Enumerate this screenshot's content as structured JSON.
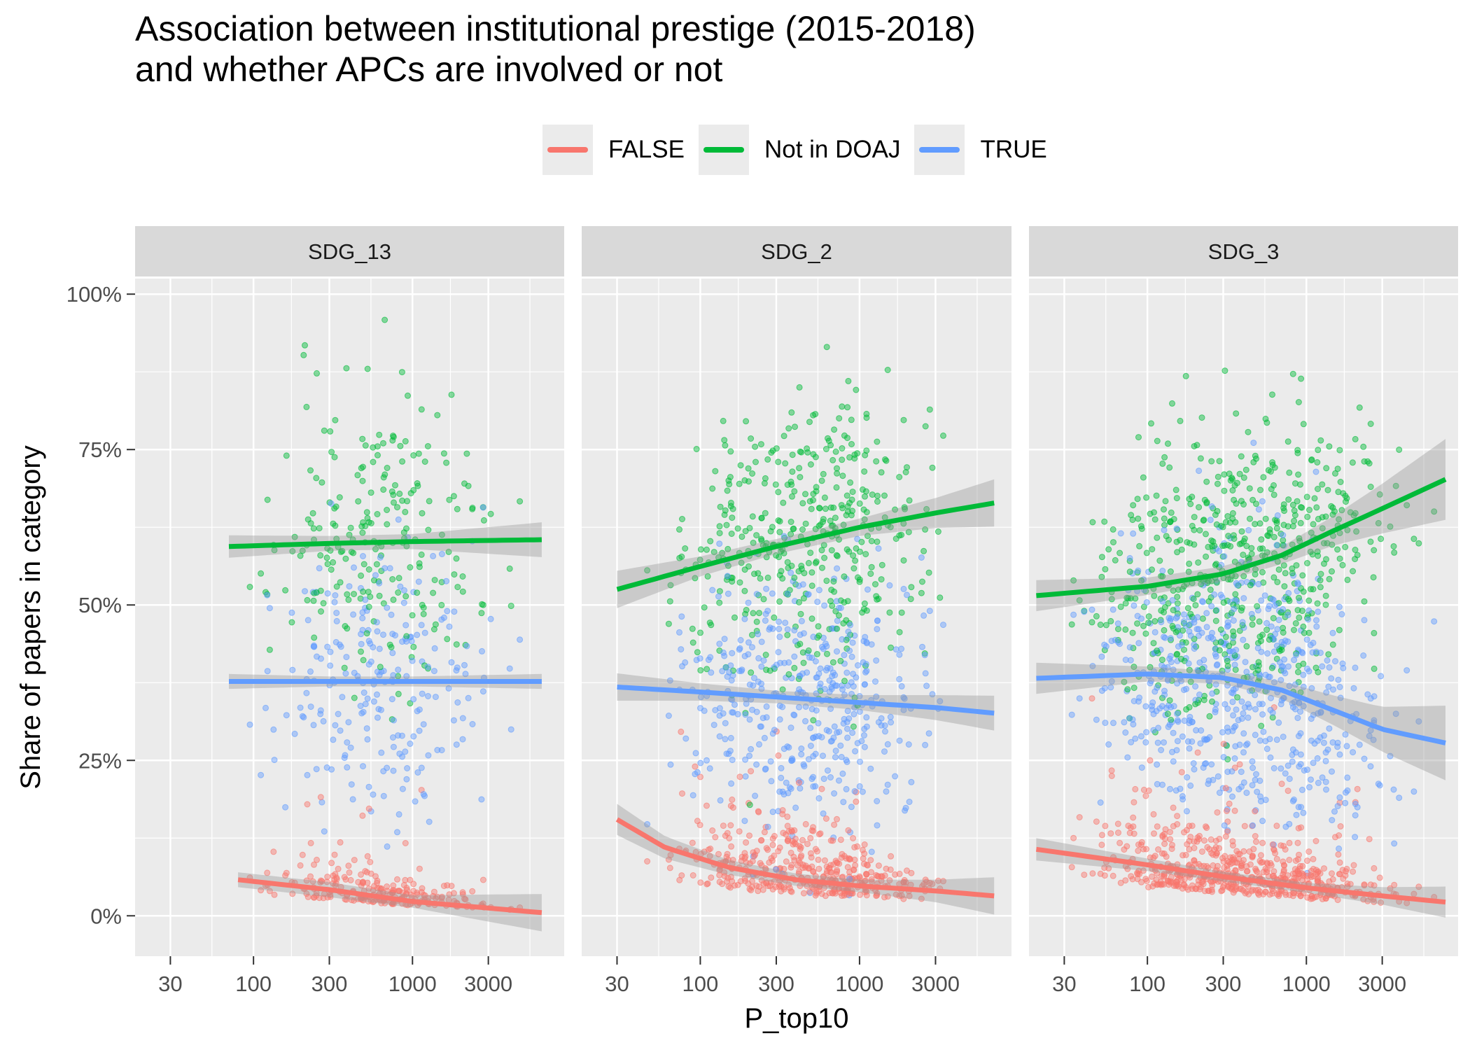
{
  "title": {
    "line1": "Association between institutional prestige (2015-2018)",
    "line2": "and whether APCs are involved or not"
  },
  "legend": [
    {
      "label": "FALSE",
      "color": "#F8766D"
    },
    {
      "label": "Not in DOAJ",
      "color": "#00BA38"
    },
    {
      "label": "TRUE",
      "color": "#619CFF"
    }
  ],
  "chart_data": {
    "type": "scatter",
    "subtype": "faceted scatter with smoothed trend lines and confidence bands",
    "x_scale": "log10",
    "xlabel": "P_top10",
    "ylabel": "Share of papers in category",
    "x_ticks": [
      30,
      100,
      300,
      1000,
      3000
    ],
    "x_tick_labels": [
      "30",
      "100",
      "300",
      "1000",
      "3000"
    ],
    "y_ticks": [
      0,
      0.25,
      0.5,
      0.75,
      1.0
    ],
    "y_tick_labels": [
      "0%",
      "25%",
      "50%",
      "75%",
      "100%"
    ],
    "xlim": [
      18,
      9000
    ],
    "ylim": [
      -0.065,
      1.025
    ],
    "grid": true,
    "legend_position": "top",
    "facets": [
      {
        "name": "SDG_13",
        "x_range": [
          65,
          6500
        ],
        "n_points": 230,
        "series": [
          {
            "name": "FALSE",
            "color": "#F8766D",
            "trend": [
              [
                80,
                0.058
              ],
              [
                300,
                0.042
              ],
              [
                1000,
                0.023
              ],
              [
                6500,
                0.005
              ]
            ],
            "band": [
              0.012,
              0.012,
              0.01,
              0.03
            ]
          },
          {
            "name": "Not in DOAJ",
            "color": "#00BA38",
            "trend": [
              [
                70,
                0.594
              ],
              [
                300,
                0.599
              ],
              [
                1000,
                0.602
              ],
              [
                6500,
                0.605
              ]
            ],
            "band": [
              0.018,
              0.012,
              0.012,
              0.028
            ]
          },
          {
            "name": "TRUE",
            "color": "#619CFF",
            "trend": [
              [
                70,
                0.377
              ],
              [
                300,
                0.377
              ],
              [
                1000,
                0.377
              ],
              [
                6500,
                0.377
              ]
            ],
            "band": [
              0.012,
              0.008,
              0.008,
              0.012
            ]
          }
        ]
      },
      {
        "name": "SDG_2",
        "x_range": [
          30,
          7000
        ],
        "n_points": 430,
        "series": [
          {
            "name": "FALSE",
            "color": "#F8766D",
            "trend": [
              [
                30,
                0.155
              ],
              [
                60,
                0.11
              ],
              [
                150,
                0.078
              ],
              [
                400,
                0.058
              ],
              [
                1000,
                0.048
              ],
              [
                3000,
                0.04
              ],
              [
                7000,
                0.032
              ]
            ],
            "band": [
              0.025,
              0.018,
              0.012,
              0.01,
              0.01,
              0.018,
              0.03
            ]
          },
          {
            "name": "Not in DOAJ",
            "color": "#00BA38",
            "trend": [
              [
                30,
                0.525
              ],
              [
                100,
                0.562
              ],
              [
                300,
                0.594
              ],
              [
                1000,
                0.625
              ],
              [
                3000,
                0.648
              ],
              [
                7000,
                0.664
              ]
            ],
            "band": [
              0.03,
              0.016,
              0.012,
              0.014,
              0.024,
              0.038
            ]
          },
          {
            "name": "TRUE",
            "color": "#619CFF",
            "trend": [
              [
                30,
                0.368
              ],
              [
                100,
                0.36
              ],
              [
                300,
                0.352
              ],
              [
                1000,
                0.343
              ],
              [
                3000,
                0.335
              ],
              [
                7000,
                0.326
              ]
            ],
            "band": [
              0.022,
              0.014,
              0.01,
              0.012,
              0.02,
              0.028
            ]
          }
        ]
      },
      {
        "name": "SDG_3",
        "x_range": [
          20,
          7500
        ],
        "n_points": 600,
        "series": [
          {
            "name": "FALSE",
            "color": "#F8766D",
            "trend": [
              [
                20,
                0.107
              ],
              [
                100,
                0.082
              ],
              [
                300,
                0.063
              ],
              [
                1000,
                0.045
              ],
              [
                3000,
                0.032
              ],
              [
                7500,
                0.022
              ]
            ],
            "band": [
              0.018,
              0.01,
              0.008,
              0.008,
              0.014,
              0.025
            ]
          },
          {
            "name": "Not in DOAJ",
            "color": "#00BA38",
            "trend": [
              [
                20,
                0.515
              ],
              [
                100,
                0.53
              ],
              [
                300,
                0.55
              ],
              [
                700,
                0.58
              ],
              [
                1500,
                0.62
              ],
              [
                3000,
                0.655
              ],
              [
                7500,
                0.702
              ]
            ],
            "band": [
              0.025,
              0.014,
              0.012,
              0.014,
              0.024,
              0.04,
              0.065
            ]
          },
          {
            "name": "TRUE",
            "color": "#619CFF",
            "trend": [
              [
                20,
                0.382
              ],
              [
                100,
                0.389
              ],
              [
                300,
                0.383
              ],
              [
                700,
                0.363
              ],
              [
                1500,
                0.33
              ],
              [
                3000,
                0.3
              ],
              [
                7500,
                0.278
              ]
            ],
            "band": [
              0.025,
              0.012,
              0.01,
              0.014,
              0.024,
              0.036,
              0.06
            ]
          }
        ]
      }
    ]
  }
}
